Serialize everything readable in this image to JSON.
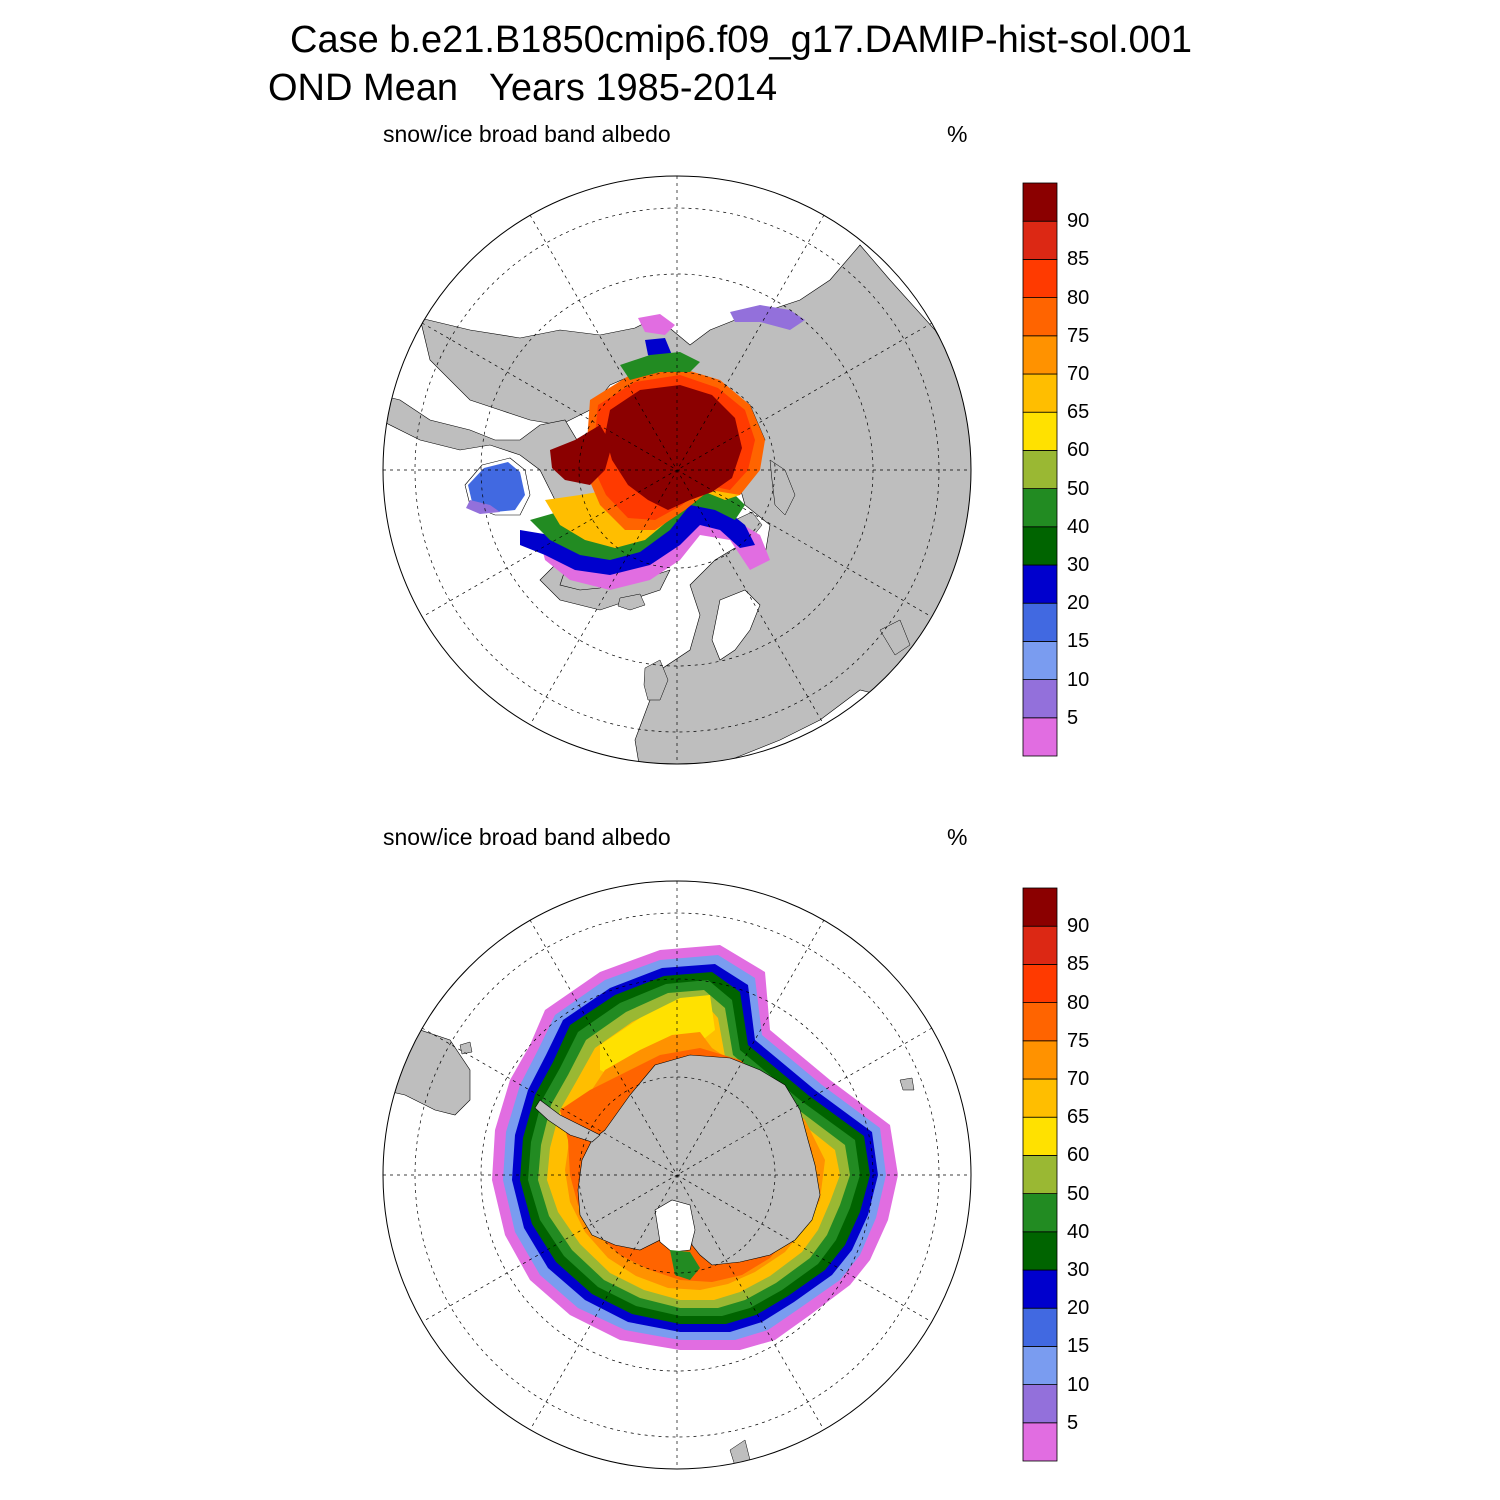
{
  "title": {
    "line1": "Case b.e21.B1850cmip6.f09_g17.DAMIP-hist-sol.001",
    "line2": "OND Mean   Years 1985-2014"
  },
  "colors": {
    "land": "#bebebe",
    "ocean": "#ffffff",
    "bins": [
      "#e16de1",
      "#9370db",
      "#7a9cf0",
      "#4169e1",
      "#0000cd",
      "#006400",
      "#228b22",
      "#9ab833",
      "#ffe100",
      "#ffbe00",
      "#ff9200",
      "#ff6400",
      "#ff3a00",
      "#dc2814",
      "#8b0000"
    ]
  },
  "colorbar": {
    "labels": [
      "5",
      "10",
      "15",
      "20",
      "30",
      "40",
      "50",
      "60",
      "65",
      "70",
      "75",
      "80",
      "85",
      "90"
    ]
  },
  "panels": [
    {
      "id": "north",
      "variable": "snow/ice broad band albedo",
      "units": "%",
      "hemisphere": "Northern Hemisphere polar stereographic"
    },
    {
      "id": "south",
      "variable": "snow/ice broad band albedo",
      "units": "%",
      "hemisphere": "Southern Hemisphere polar stereographic"
    }
  ]
}
